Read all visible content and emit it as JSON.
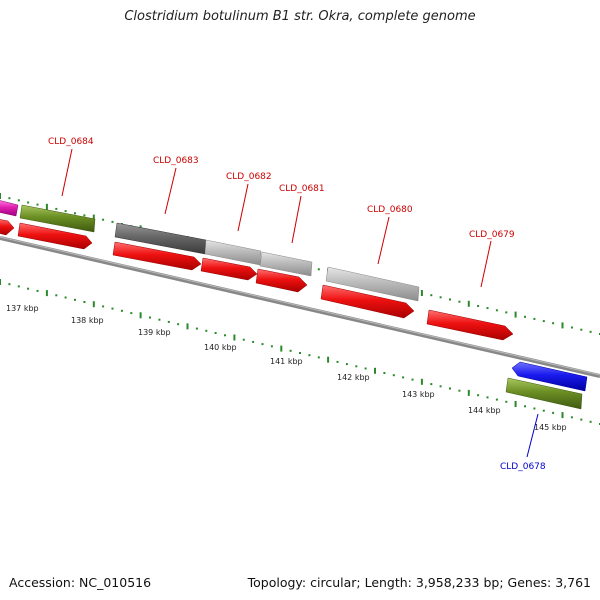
{
  "title": "Clostridium botulinum B1 str. Okra, complete genome",
  "footer": {
    "accession": "Accession: NC_010516",
    "summary": "Topology: circular; Length: 3,958,233 bp; Genes: 3,761"
  },
  "colors": {
    "forward_cds": "#ee1111",
    "reverse_cds": "#1a1aee",
    "feature_green": "#6b8e23",
    "feature_magenta": "#e020b0",
    "feature_dark": "#666666",
    "feature_light": "#bbbbbb",
    "label_forward": "#cc0000",
    "label_reverse": "#0000cc",
    "tick": "#2a8a2a",
    "backbone": "#888888"
  },
  "scale": {
    "unit": "kbp",
    "labels": [
      "137 kbp",
      "138 kbp",
      "139 kbp",
      "140 kbp",
      "141 kbp",
      "142 kbp",
      "143 kbp",
      "144 kbp",
      "145 kbp"
    ]
  },
  "genes": [
    {
      "name": "CLD_0684",
      "strand": "+",
      "track": "feature",
      "feature_color": "green"
    },
    {
      "name": "CLD_0683",
      "strand": "+",
      "track": "feature",
      "feature_color": "dark"
    },
    {
      "name": "CLD_0682",
      "strand": "+",
      "track": "feature",
      "feature_color": "light"
    },
    {
      "name": "CLD_0681",
      "strand": "+",
      "track": "feature",
      "feature_color": "light"
    },
    {
      "name": "CLD_0680",
      "strand": "+",
      "track": "feature",
      "feature_color": "light"
    },
    {
      "name": "CLD_0679",
      "strand": "+",
      "track": "cds"
    },
    {
      "name": "CLD_0678",
      "strand": "-",
      "track": "feature",
      "feature_color": "green"
    }
  ]
}
